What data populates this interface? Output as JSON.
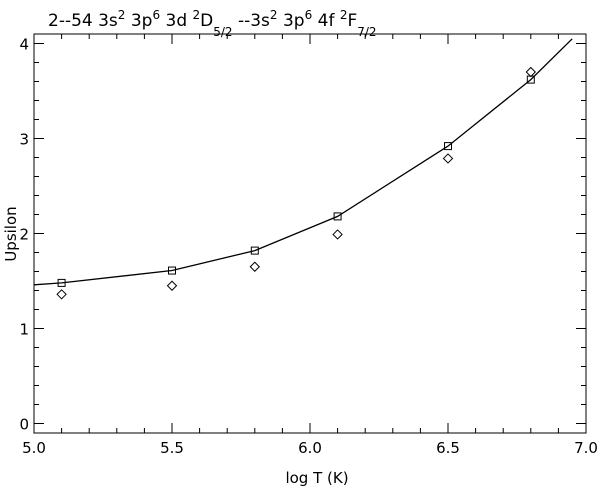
{
  "chart_data": {
    "type": "scatter",
    "title": {
      "segments": [
        {
          "text": "2--54 3s",
          "pos": "base"
        },
        {
          "text": "2",
          "pos": "sup"
        },
        {
          "text": " 3p",
          "pos": "base"
        },
        {
          "text": "6",
          "pos": "sup"
        },
        {
          "text": " 3d ",
          "pos": "base"
        },
        {
          "text": "2",
          "pos": "sup"
        },
        {
          "text": "D",
          "pos": "base"
        },
        {
          "text": "5/2",
          "pos": "sub"
        },
        {
          "text": " --3s",
          "pos": "base"
        },
        {
          "text": "2",
          "pos": "sup"
        },
        {
          "text": " 3p",
          "pos": "base"
        },
        {
          "text": "6",
          "pos": "sup"
        },
        {
          "text": " 4f ",
          "pos": "base"
        },
        {
          "text": "2",
          "pos": "sup"
        },
        {
          "text": "F",
          "pos": "base"
        },
        {
          "text": "7/2",
          "pos": "sub"
        }
      ]
    },
    "xlabel": "log T (K)",
    "ylabel": "Upsilon",
    "xlim": [
      5.0,
      7.0
    ],
    "ylim": [
      -0.1,
      4.1
    ],
    "xticks": [
      "5.0",
      "5.5",
      "6.0",
      "6.5",
      "7.0"
    ],
    "yticks": [
      "0",
      "1",
      "2",
      "3",
      "4"
    ],
    "grid": false,
    "series": [
      {
        "marker": "line",
        "x": [
          5.0,
          5.1,
          5.5,
          5.8,
          6.1,
          6.5,
          6.8,
          6.95
        ],
        "y": [
          1.46,
          1.48,
          1.61,
          1.82,
          2.18,
          2.92,
          3.62,
          4.05
        ]
      },
      {
        "marker": "square",
        "x": [
          5.1,
          5.5,
          5.8,
          6.1,
          6.5,
          6.8
        ],
        "y": [
          1.48,
          1.61,
          1.82,
          2.18,
          2.92,
          3.62
        ]
      },
      {
        "marker": "diamond",
        "x": [
          5.1,
          5.5,
          5.8,
          6.1,
          6.5,
          6.8
        ],
        "y": [
          1.36,
          1.45,
          1.65,
          1.99,
          2.79,
          3.7
        ]
      }
    ]
  }
}
